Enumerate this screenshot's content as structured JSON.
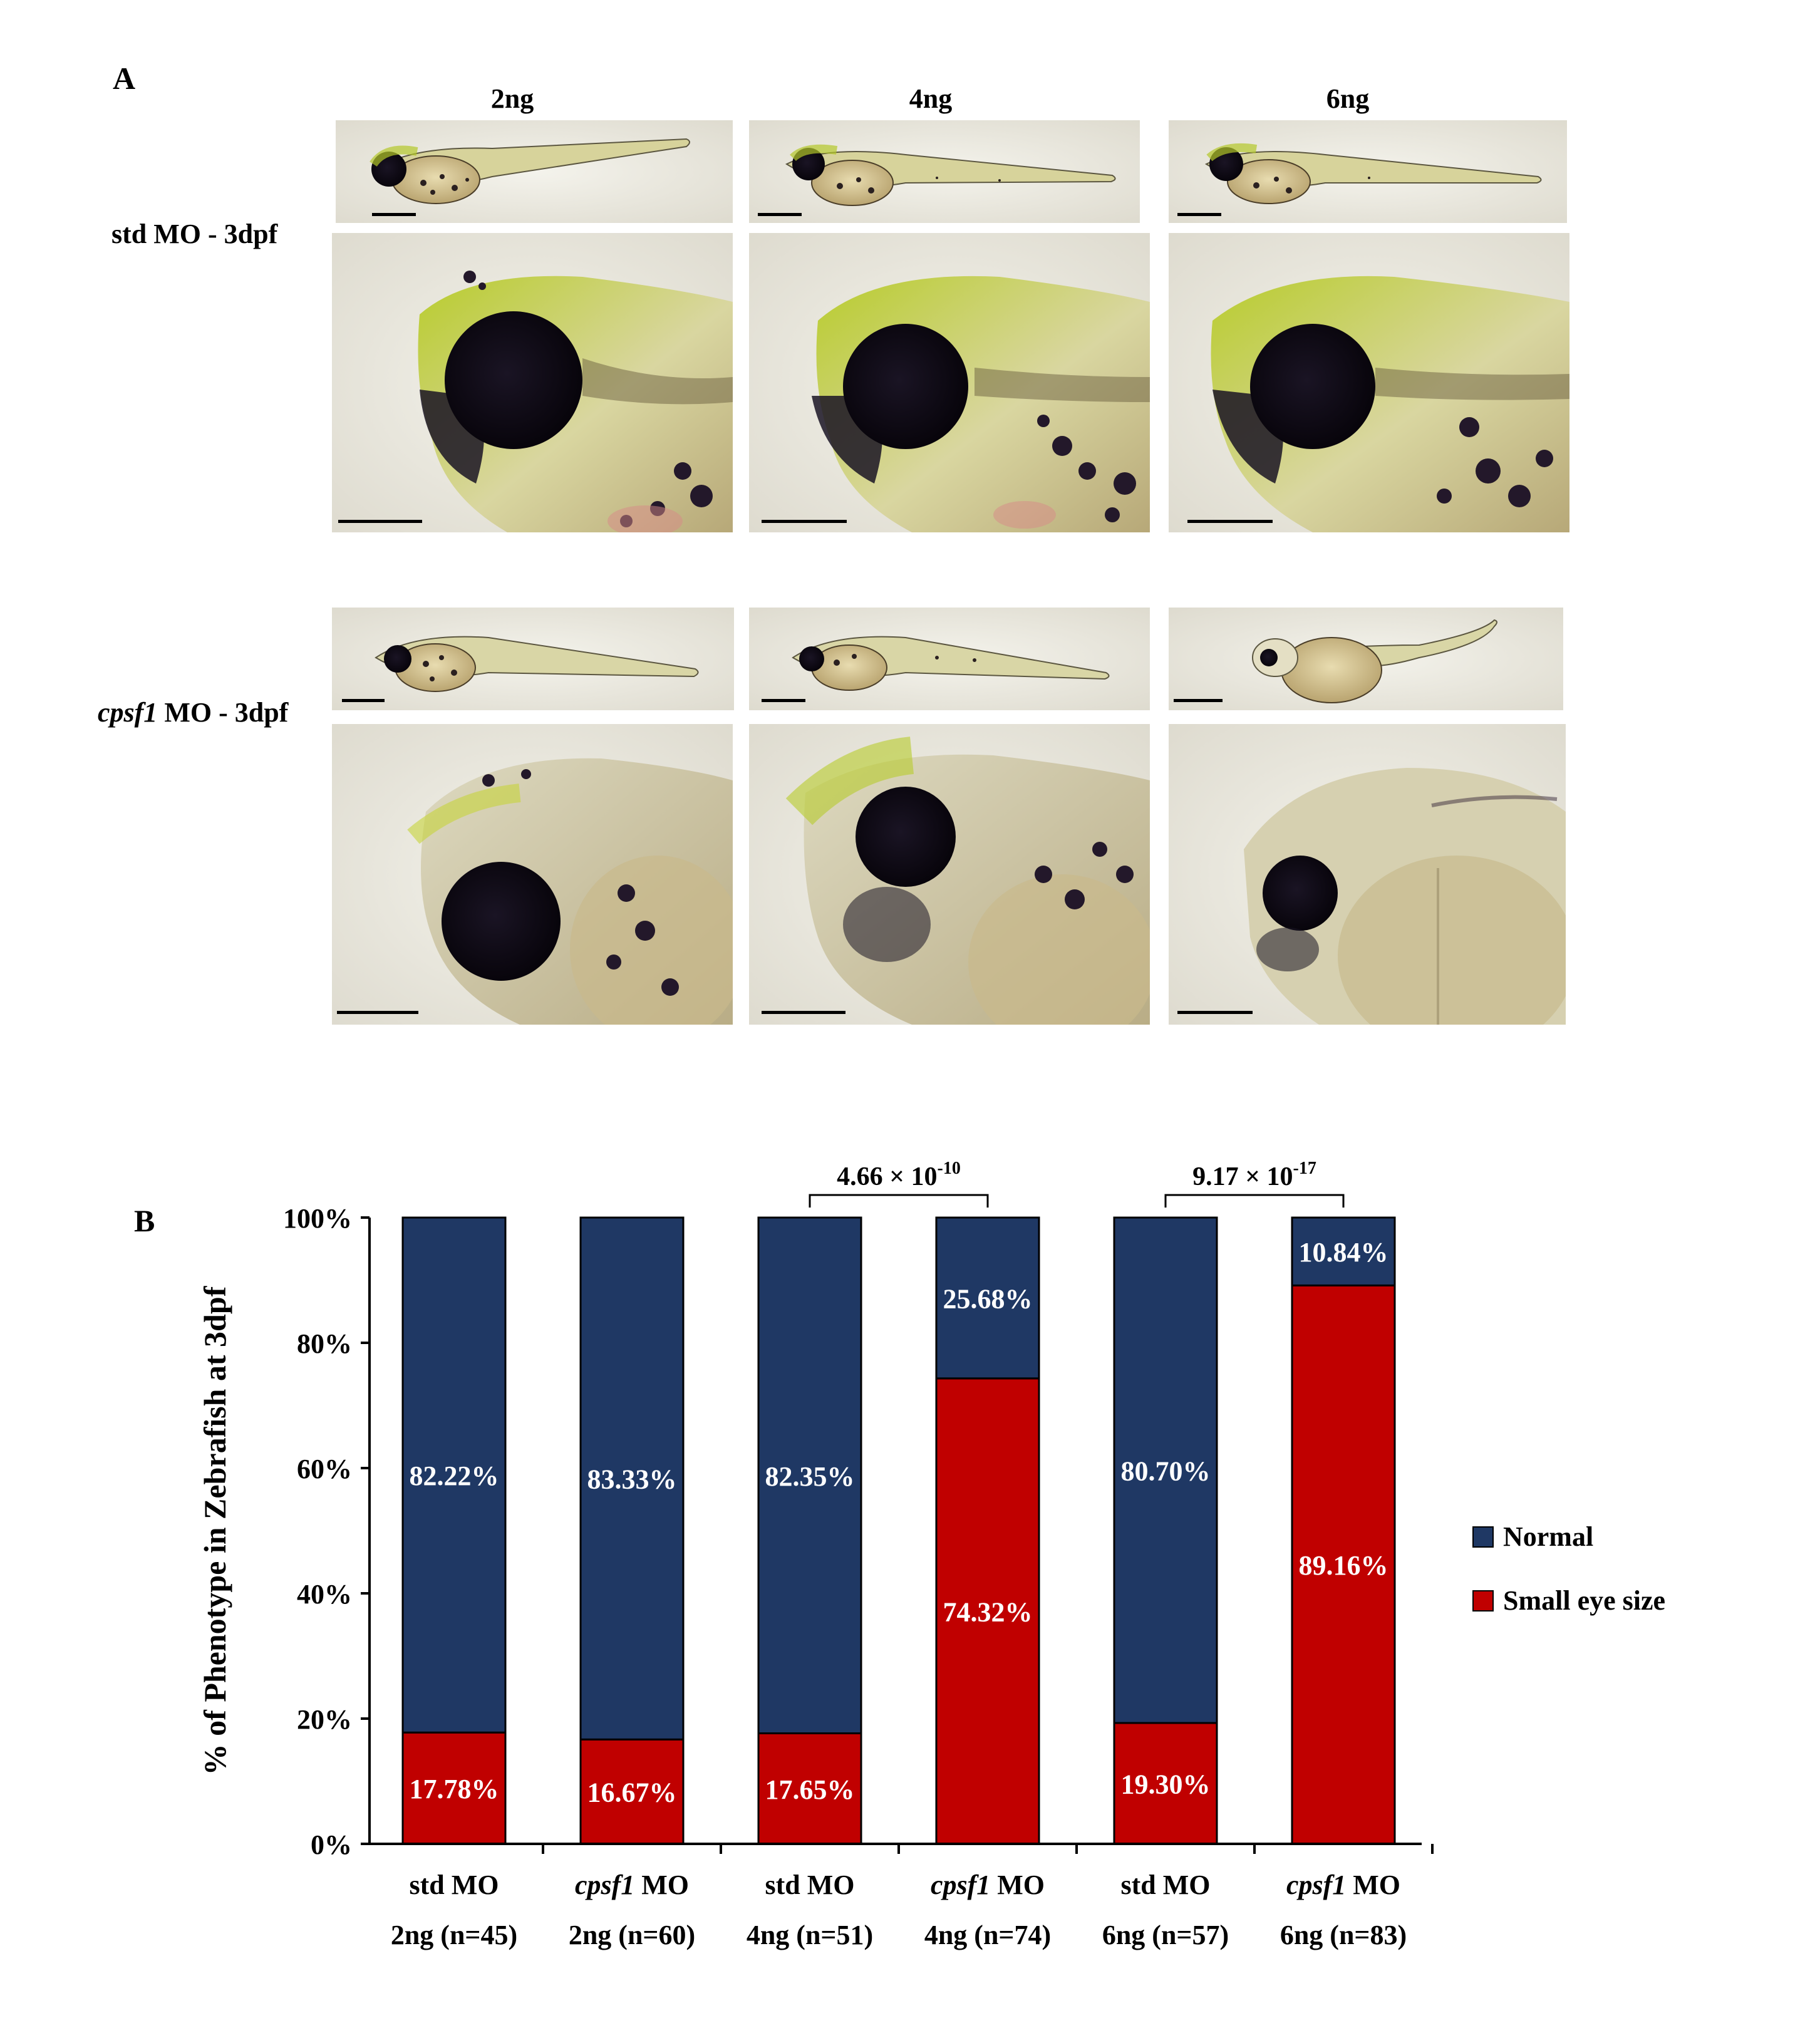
{
  "panel_a": {
    "letter": "A",
    "dose_headers": [
      "2ng",
      "4ng",
      "6ng"
    ],
    "rows": [
      {
        "label": "std MO - 3dpf",
        "gene_italic": "",
        "rest": "std MO - 3dpf"
      },
      {
        "label": "cpsf1 MO - 3dpf",
        "gene_italic": "cpsf1",
        "rest": " MO - 3dpf"
      }
    ]
  },
  "panel_b": {
    "letter": "B"
  },
  "colors": {
    "normal": "#1f3864",
    "small_eye": "#c00000"
  },
  "chart_data": {
    "type": "bar",
    "stacked": true,
    "ylabel": "% of Phenotype in Zebrafish at 3dpf",
    "ylim": [
      0,
      100
    ],
    "yticks": [
      "0%",
      "20%",
      "40%",
      "60%",
      "80%",
      "100%"
    ],
    "categories": [
      {
        "gene": "std",
        "gene_italic": false,
        "line1_suffix": " MO",
        "line2": "2ng (n=45)"
      },
      {
        "gene": "cpsf1",
        "gene_italic": true,
        "line1_suffix": " MO",
        "line2": "2ng (n=60)"
      },
      {
        "gene": "std",
        "gene_italic": false,
        "line1_suffix": " MO",
        "line2": "4ng (n=51)"
      },
      {
        "gene": "cpsf1",
        "gene_italic": true,
        "line1_suffix": " MO",
        "line2": "4ng (n=74)"
      },
      {
        "gene": "std",
        "gene_italic": false,
        "line1_suffix": " MO",
        "line2": "6ng (n=57)"
      },
      {
        "gene": "cpsf1",
        "gene_italic": true,
        "line1_suffix": " MO",
        "line2": "6ng (n=83)"
      }
    ],
    "series": [
      {
        "name": "Small eye size",
        "values": [
          17.78,
          16.67,
          17.65,
          74.32,
          19.3,
          89.16
        ],
        "labels": [
          "17.78%",
          "16.67%",
          "17.65%",
          "74.32%",
          "19.30%",
          "89.16%"
        ]
      },
      {
        "name": "Normal",
        "values": [
          82.22,
          83.33,
          82.35,
          25.68,
          80.7,
          10.84
        ],
        "labels": [
          "82.22%",
          "83.33%",
          "82.35%",
          "25.68%",
          "80.70%",
          "10.84%"
        ]
      }
    ],
    "legend": [
      {
        "name": "Normal",
        "color": "#1f3864"
      },
      {
        "name": "Small eye size",
        "color": "#c00000"
      }
    ],
    "legend_position": "right",
    "significance": [
      {
        "pair": [
          2,
          3
        ],
        "mantissa": "4.66 × 10",
        "exponent": "-10"
      },
      {
        "pair": [
          4,
          5
        ],
        "mantissa": "9.17 × 10",
        "exponent": "-17"
      }
    ]
  }
}
